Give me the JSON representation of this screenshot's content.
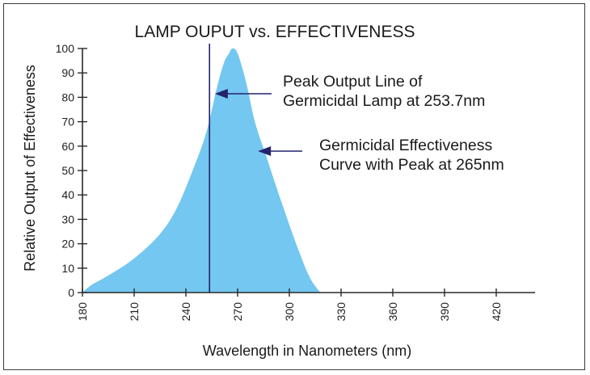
{
  "chart_data": {
    "type": "area",
    "title": "LAMP OUPUT vs. EFFECTIVENESS",
    "xlabel": "Wavelength in Nanometers (nm)",
    "ylabel": "Relative Output of Effectiveness",
    "xlim": [
      180,
      440
    ],
    "ylim": [
      0,
      100
    ],
    "x_ticks": [
      180,
      210,
      240,
      270,
      300,
      330,
      360,
      390,
      420
    ],
    "y_ticks": [
      0,
      10,
      20,
      30,
      40,
      50,
      60,
      70,
      80,
      90,
      100
    ],
    "grid": false,
    "series": [
      {
        "type": "area",
        "color": "#74c7f0",
        "x": [
          180,
          185,
          195,
          210,
          225,
          235,
          245,
          252,
          258,
          262,
          265,
          267,
          270,
          275,
          280,
          287,
          295,
          305,
          312,
          318
        ],
        "y": [
          0,
          3,
          7,
          14,
          24,
          35,
          52,
          66,
          84,
          94,
          98,
          100,
          98,
          86,
          70,
          55,
          38,
          18,
          6,
          0
        ]
      },
      {
        "type": "vline",
        "color": "#23236e",
        "x": 253.7,
        "y_range": [
          0,
          102
        ]
      }
    ],
    "annotations": [
      {
        "text_lines": [
          "Peak Output Line of",
          "Germicidal Lamp at 253.7nm"
        ],
        "arrow_to": [
          254,
          82
        ]
      },
      {
        "text_lines": [
          "Germicidal Effectiveness",
          "Curve with Peak at 265nm"
        ],
        "arrow_to": [
          279,
          58
        ]
      }
    ]
  }
}
